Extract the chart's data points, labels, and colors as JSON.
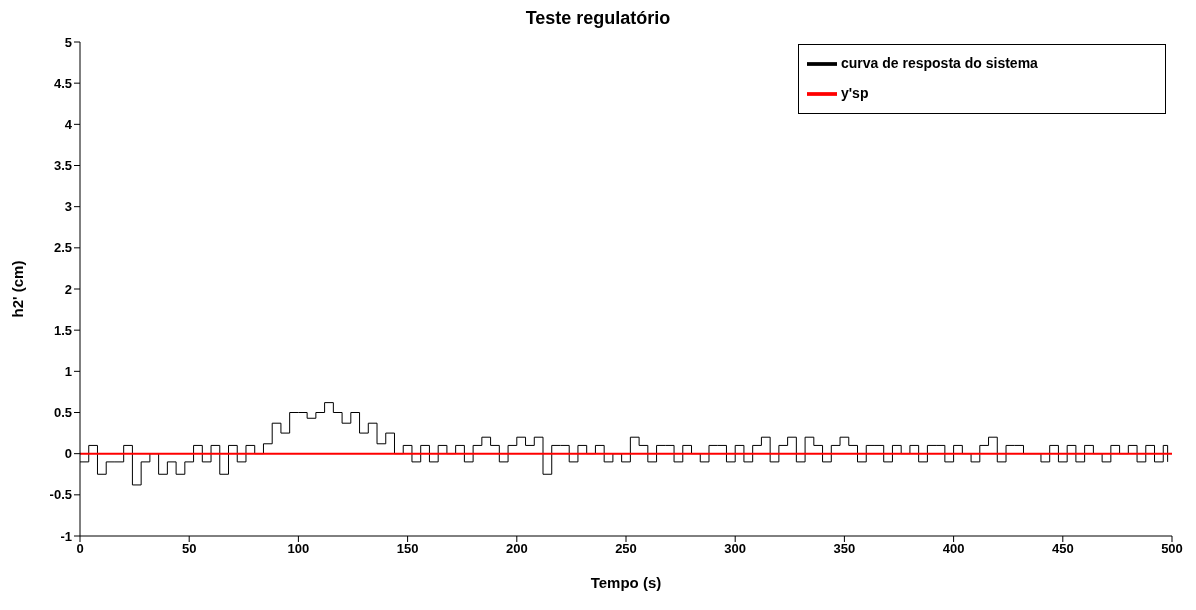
{
  "chart_data": {
    "type": "step",
    "title": "Teste regulatório",
    "xlabel": "Tempo (s)",
    "ylabel": "h2' (cm)",
    "xlim": [
      0,
      500
    ],
    "xticks": [
      0,
      50,
      100,
      150,
      200,
      250,
      300,
      350,
      400,
      450,
      500
    ],
    "ylim": [
      -1,
      5
    ],
    "yticks": [
      -1,
      -0.5,
      0,
      0.5,
      1,
      1.5,
      2,
      2.5,
      3,
      3.5,
      4,
      4.5,
      5
    ],
    "grid": false,
    "legend": "top right",
    "marker": "none",
    "line_style": "solid",
    "series": [
      {
        "name": "curva de resposta do sistema",
        "type": "step",
        "color": "#000000",
        "x": [
          0,
          4,
          8,
          12,
          16,
          20,
          24,
          28,
          32,
          36,
          40,
          44,
          48,
          52,
          56,
          60,
          64,
          68,
          72,
          76,
          80,
          84,
          88,
          92,
          96,
          100,
          104,
          108,
          112,
          116,
          120,
          124,
          128,
          132,
          136,
          140,
          144,
          148,
          152,
          156,
          160,
          164,
          168,
          172,
          176,
          180,
          184,
          188,
          192,
          196,
          200,
          204,
          208,
          212,
          216,
          220,
          224,
          228,
          232,
          236,
          240,
          244,
          248,
          252,
          256,
          260,
          264,
          268,
          272,
          276,
          280,
          284,
          288,
          292,
          296,
          300,
          304,
          308,
          312,
          316,
          320,
          324,
          328,
          332,
          336,
          340,
          344,
          348,
          352,
          356,
          360,
          364,
          368,
          372,
          376,
          380,
          384,
          388,
          392,
          396,
          400,
          404,
          408,
          412,
          416,
          420,
          424,
          428,
          432,
          436,
          440,
          444,
          448,
          452,
          456,
          460,
          464,
          468,
          472,
          476,
          480,
          484,
          488,
          492,
          496,
          498
        ],
        "values": [
          -0.1,
          0.1,
          -0.25,
          -0.1,
          -0.1,
          0.1,
          -0.38,
          -0.1,
          0,
          -0.25,
          -0.1,
          -0.25,
          -0.1,
          0.1,
          -0.1,
          0.1,
          -0.25,
          0.1,
          -0.1,
          0.1,
          0,
          0.12,
          0.37,
          0.25,
          0.5,
          0.5,
          0.43,
          0.5,
          0.62,
          0.5,
          0.37,
          0.5,
          0.25,
          0.37,
          0.12,
          0.25,
          0,
          0.1,
          -0.1,
          0.1,
          -0.1,
          0.1,
          0,
          0.1,
          -0.1,
          0.1,
          0.2,
          0.1,
          -0.1,
          0.1,
          0.2,
          0.1,
          0.2,
          -0.25,
          0.1,
          0.1,
          -0.1,
          0.1,
          0,
          0.1,
          -0.1,
          0,
          -0.1,
          0.2,
          0.1,
          -0.1,
          0.1,
          0.1,
          -0.1,
          0.1,
          0,
          -0.1,
          0.1,
          0.1,
          -0.1,
          0.1,
          -0.1,
          0.1,
          0.2,
          -0.1,
          0.1,
          0.2,
          -0.1,
          0.2,
          0.1,
          -0.1,
          0.1,
          0.2,
          0.1,
          -0.1,
          0.1,
          0.1,
          -0.1,
          0.1,
          0,
          0.1,
          -0.1,
          0.1,
          0.1,
          -0.1,
          0.1,
          0,
          -0.1,
          0.1,
          0.2,
          -0.1,
          0.1,
          0.1,
          0,
          0,
          -0.1,
          0.1,
          -0.1,
          0.1,
          -0.1,
          0.1,
          0,
          -0.1,
          0.1,
          0,
          0.1,
          -0.1,
          0.1,
          -0.1,
          0.1,
          -0.1
        ]
      },
      {
        "name": "y'sp",
        "type": "line",
        "color": "#ff0000",
        "x": [
          0,
          500
        ],
        "values": [
          0,
          0
        ]
      }
    ]
  }
}
